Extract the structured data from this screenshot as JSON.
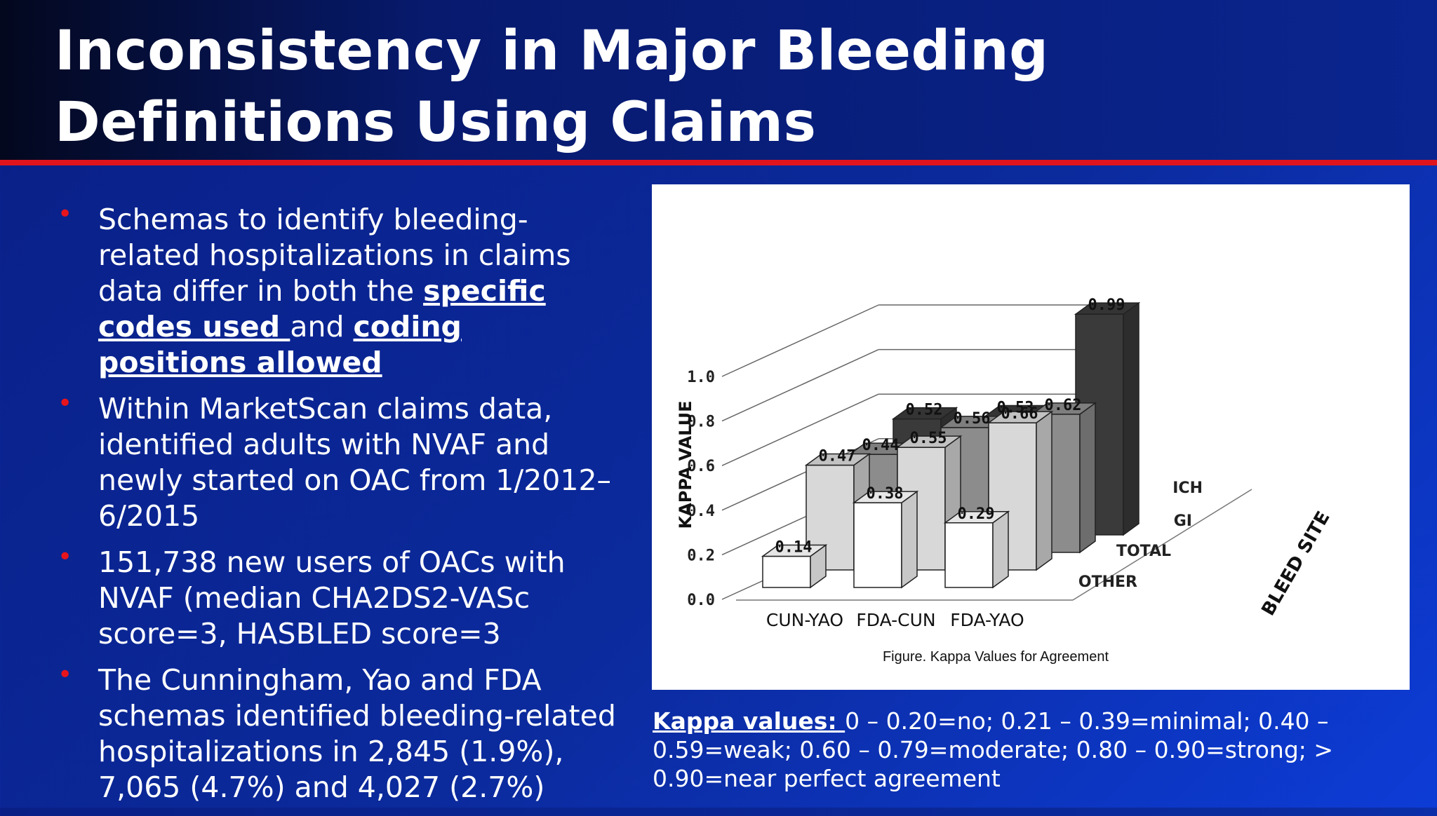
{
  "slide": {
    "title_line1": "Inconsistency in Major Bleeding",
    "title_line2": "Definitions Using Claims"
  },
  "bullets": [
    {
      "p1": "Schemas to identify bleeding-related hospitalizations in claims data differ in both the ",
      "u1": "specific codes used ",
      "p2": "and ",
      "u2": "coding positions allowed"
    },
    {
      "text": "Within MarketScan claims data, identified adults with NVAF and newly started on OAC from 1/2012–6/2015"
    },
    {
      "text": "151,738 new users of OACs with NVAF (median CHA2DS2-VASc score=3, HASBLED score=3"
    },
    {
      "text": "The Cunningham, Yao and FDA schemas identified bleeding-related hospitalizations in 2,845 (1.9%), 7,065 (4.7%) and 4,027 (2.7%)"
    }
  ],
  "note": {
    "label": "Kappa values: ",
    "text": "0 – 0.20=no; 0.21 – 0.39=minimal; 0.40 – 0.59=weak; 0.60 – 0.79=moderate; 0.80 – 0.90=strong; > 0.90=near perfect agreement"
  },
  "chart_data": {
    "type": "bar",
    "style": "3d",
    "title": "Figure. Kappa Values for Agreement",
    "ylabel": "KAPPA VALUE",
    "zlabel": "BLEED SITE",
    "ylim": [
      0,
      1.0
    ],
    "yticks": [
      "0.0",
      "0.2",
      "0.4",
      "0.6",
      "0.8",
      "1.0"
    ],
    "categories": [
      "CUN-YAO",
      "FDA-CUN",
      "FDA-YAO"
    ],
    "series": [
      {
        "name": "OTHER",
        "color": "#ffffff",
        "values": [
          0.14,
          0.38,
          0.29
        ],
        "labels": [
          "0.14",
          "0.38",
          "0.29"
        ]
      },
      {
        "name": "TOTAL",
        "color": "#d8d8d8",
        "values": [
          0.47,
          0.55,
          0.66
        ],
        "labels": [
          "0.47",
          "0.55",
          "0.66"
        ]
      },
      {
        "name": "GI",
        "color": "#8c8c8c",
        "values": [
          0.44,
          0.56,
          0.62
        ],
        "labels": [
          "0.44",
          "0.56",
          "0.62"
        ]
      },
      {
        "name": "ICH",
        "color": "#3a3a3a",
        "values": [
          0.52,
          0.53,
          0.99
        ],
        "labels": [
          "0.52",
          "0.53",
          "0.99"
        ]
      }
    ]
  }
}
